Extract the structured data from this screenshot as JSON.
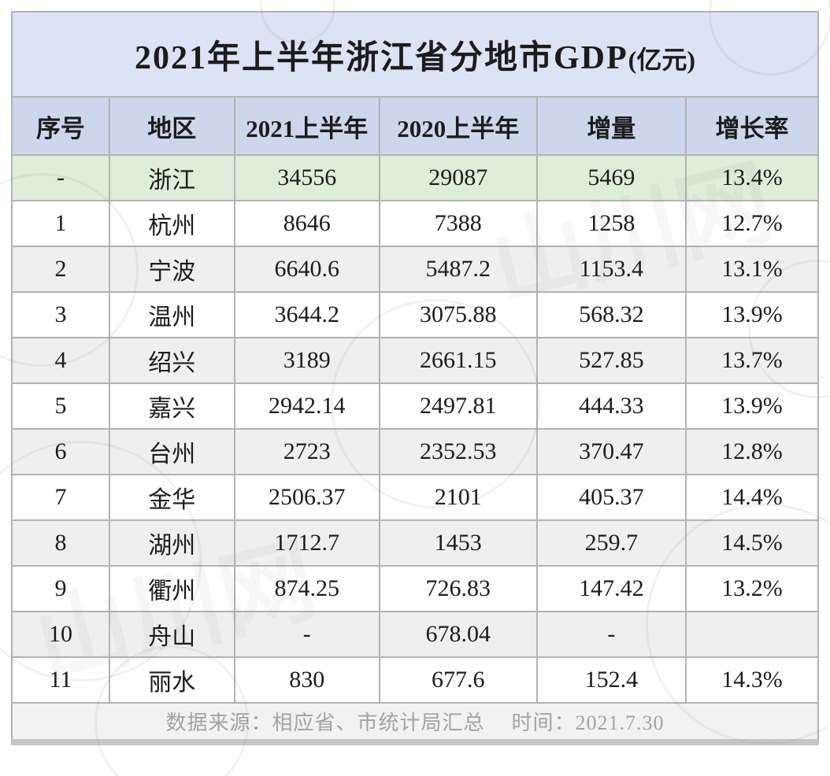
{
  "title": {
    "main": "2021年上半年浙江省分地市GDP",
    "unit": "(亿元)"
  },
  "watermark_text": "山川网",
  "table": {
    "columns": [
      "序号",
      "地区",
      "2021上半年",
      "2020上半年",
      "增量",
      "增长率"
    ],
    "column_widths_pct": [
      12.1,
      15.5,
      18.0,
      19.5,
      18.5,
      16.4
    ],
    "rows": [
      {
        "cells": [
          "-",
          "浙江",
          "34556",
          "29087",
          "5469",
          "13.4%"
        ]
      },
      {
        "cells": [
          "1",
          "杭州",
          "8646",
          "7388",
          "1258",
          "12.7%"
        ]
      },
      {
        "cells": [
          "2",
          "宁波",
          "6640.6",
          "5487.2",
          "1153.4",
          "13.1%"
        ]
      },
      {
        "cells": [
          "3",
          "温州",
          "3644.2",
          "3075.88",
          "568.32",
          "13.9%"
        ]
      },
      {
        "cells": [
          "4",
          "绍兴",
          "3189",
          "2661.15",
          "527.85",
          "13.7%"
        ]
      },
      {
        "cells": [
          "5",
          "嘉兴",
          "2942.14",
          "2497.81",
          "444.33",
          "13.9%"
        ]
      },
      {
        "cells": [
          "6",
          "台州",
          "2723",
          "2352.53",
          "370.47",
          "12.8%"
        ]
      },
      {
        "cells": [
          "7",
          "金华",
          "2506.37",
          "2101",
          "405.37",
          "14.4%"
        ]
      },
      {
        "cells": [
          "8",
          "湖州",
          "1712.7",
          "1453",
          "259.7",
          "14.5%"
        ]
      },
      {
        "cells": [
          "9",
          "衢州",
          "874.25",
          "726.83",
          "147.42",
          "13.2%"
        ]
      },
      {
        "cells": [
          "10",
          "舟山",
          "-",
          "678.04",
          "-",
          ""
        ]
      },
      {
        "cells": [
          "11",
          "丽水",
          "830",
          "677.6",
          "152.4",
          "14.3%"
        ]
      }
    ]
  },
  "footer": {
    "source": "数据来源：相应省、市统计局汇总",
    "time": "时间：2021.7.30"
  },
  "colors": {
    "title_bg": "#dce3f4",
    "header_bg": "#cdd7ec",
    "province_row_bg": "#deeed8",
    "zebra_row_bg": "#efefef",
    "footer_text": "#a3a3a3",
    "border": "#b3b3b3",
    "text": "#1c1c1c"
  },
  "chart_data": {
    "type": "table",
    "title": "2021年上半年浙江省分地市GDP(亿元)",
    "columns": [
      "序号",
      "地区",
      "2021上半年",
      "2020上半年",
      "增量",
      "增长率"
    ],
    "rows": [
      {
        "rank": null,
        "region": "浙江",
        "gdp_2021_h1": 34556,
        "gdp_2020_h1": 29087,
        "increase": 5469,
        "growth_rate_pct": 13.4
      },
      {
        "rank": 1,
        "region": "杭州",
        "gdp_2021_h1": 8646,
        "gdp_2020_h1": 7388,
        "increase": 1258,
        "growth_rate_pct": 12.7
      },
      {
        "rank": 2,
        "region": "宁波",
        "gdp_2021_h1": 6640.6,
        "gdp_2020_h1": 5487.2,
        "increase": 1153.4,
        "growth_rate_pct": 13.1
      },
      {
        "rank": 3,
        "region": "温州",
        "gdp_2021_h1": 3644.2,
        "gdp_2020_h1": 3075.88,
        "increase": 568.32,
        "growth_rate_pct": 13.9
      },
      {
        "rank": 4,
        "region": "绍兴",
        "gdp_2021_h1": 3189,
        "gdp_2020_h1": 2661.15,
        "increase": 527.85,
        "growth_rate_pct": 13.7
      },
      {
        "rank": 5,
        "region": "嘉兴",
        "gdp_2021_h1": 2942.14,
        "gdp_2020_h1": 2497.81,
        "increase": 444.33,
        "growth_rate_pct": 13.9
      },
      {
        "rank": 6,
        "region": "台州",
        "gdp_2021_h1": 2723,
        "gdp_2020_h1": 2352.53,
        "increase": 370.47,
        "growth_rate_pct": 12.8
      },
      {
        "rank": 7,
        "region": "金华",
        "gdp_2021_h1": 2506.37,
        "gdp_2020_h1": 2101,
        "increase": 405.37,
        "growth_rate_pct": 14.4
      },
      {
        "rank": 8,
        "region": "湖州",
        "gdp_2021_h1": 1712.7,
        "gdp_2020_h1": 1453,
        "increase": 259.7,
        "growth_rate_pct": 14.5
      },
      {
        "rank": 9,
        "region": "衢州",
        "gdp_2021_h1": 874.25,
        "gdp_2020_h1": 726.83,
        "increase": 147.42,
        "growth_rate_pct": 13.2
      },
      {
        "rank": 10,
        "region": "舟山",
        "gdp_2021_h1": null,
        "gdp_2020_h1": 678.04,
        "increase": null,
        "growth_rate_pct": null
      },
      {
        "rank": 11,
        "region": "丽水",
        "gdp_2021_h1": 830,
        "gdp_2020_h1": 677.6,
        "increase": 152.4,
        "growth_rate_pct": 14.3
      }
    ]
  }
}
